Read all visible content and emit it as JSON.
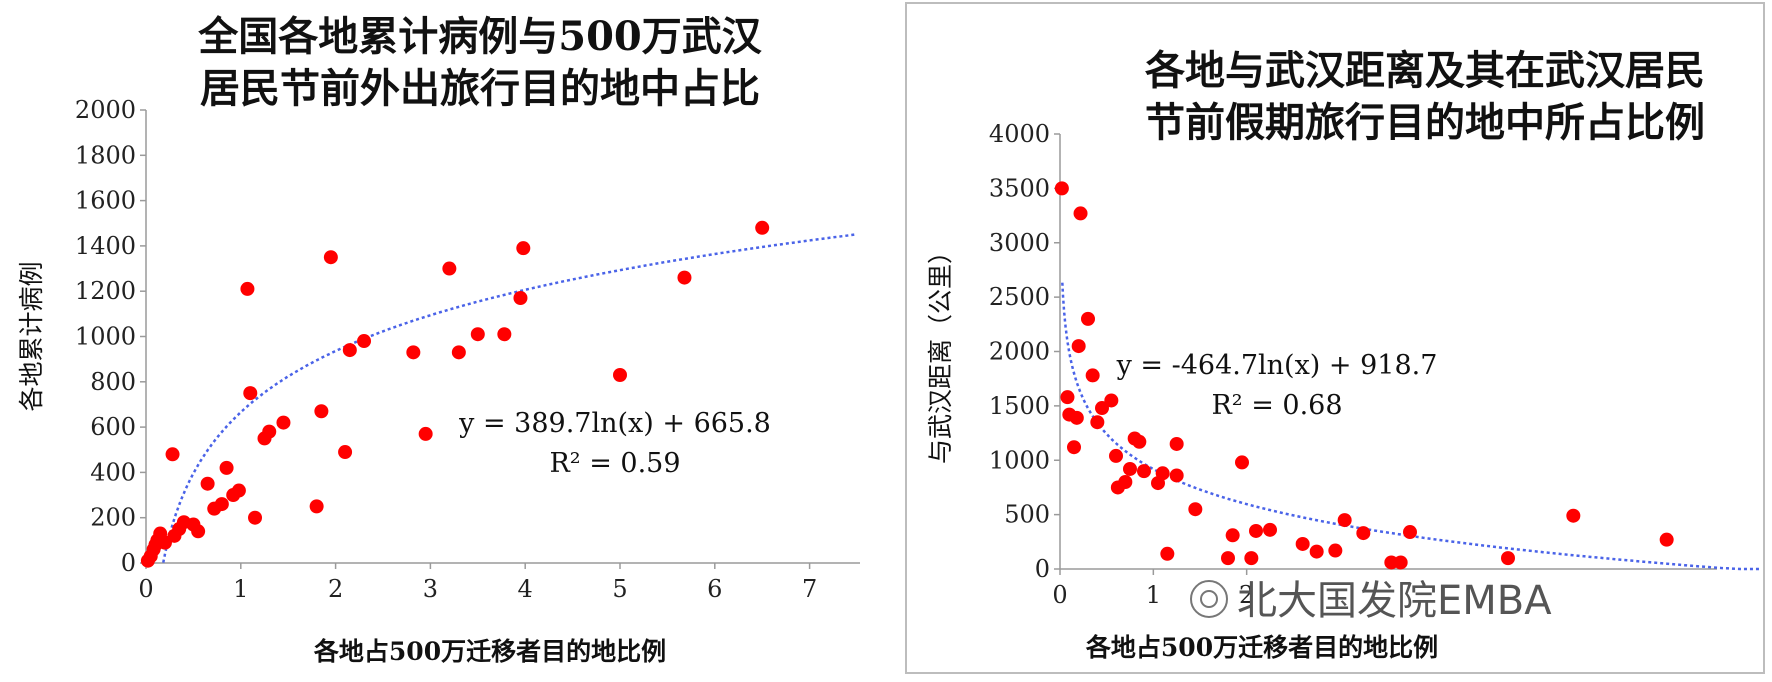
{
  "chart_data": [
    {
      "type": "scatter",
      "title_lines": [
        "全国各地累计病例与500万武汉",
        "居民节前外出旅行目的地中占比"
      ],
      "xlabel": "各地占500万迁移者目的地比例",
      "ylabel": "各地累计病例",
      "xlim": [
        0,
        7.5
      ],
      "ylim": [
        0,
        2000
      ],
      "xticks": [
        "0",
        "1",
        "2",
        "3",
        "4",
        "5",
        "6",
        "7"
      ],
      "yticks": [
        "0",
        "200",
        "400",
        "600",
        "800",
        "1000",
        "1200",
        "1400",
        "1600",
        "1800",
        "2000"
      ],
      "trend": {
        "type": "log",
        "a": 389.7,
        "b": 665.8
      },
      "equation": "y = 389.7ln(x) + 665.8",
      "r2": "R² = 0.59",
      "marker_color": "#ff0000",
      "trend_color": "#4a63e8",
      "points": [
        [
          0.02,
          10
        ],
        [
          0.05,
          30
        ],
        [
          0.08,
          60
        ],
        [
          0.1,
          80
        ],
        [
          0.15,
          130
        ],
        [
          0.12,
          100
        ],
        [
          0.2,
          90
        ],
        [
          0.28,
          480
        ],
        [
          0.3,
          120
        ],
        [
          0.35,
          150
        ],
        [
          0.4,
          180
        ],
        [
          0.5,
          170
        ],
        [
          0.55,
          140
        ],
        [
          0.65,
          350
        ],
        [
          0.72,
          240
        ],
        [
          0.8,
          260
        ],
        [
          0.85,
          420
        ],
        [
          0.92,
          300
        ],
        [
          0.98,
          320
        ],
        [
          1.07,
          1210
        ],
        [
          1.1,
          750
        ],
        [
          1.15,
          200
        ],
        [
          1.25,
          550
        ],
        [
          1.3,
          580
        ],
        [
          1.45,
          620
        ],
        [
          1.8,
          250
        ],
        [
          1.85,
          670
        ],
        [
          1.95,
          1350
        ],
        [
          2.1,
          490
        ],
        [
          2.15,
          940
        ],
        [
          2.3,
          980
        ],
        [
          2.82,
          930
        ],
        [
          2.95,
          570
        ],
        [
          3.2,
          1300
        ],
        [
          3.3,
          930
        ],
        [
          3.5,
          1010
        ],
        [
          3.78,
          1010
        ],
        [
          3.95,
          1170
        ],
        [
          3.98,
          1390
        ],
        [
          5.0,
          830
        ],
        [
          5.68,
          1260
        ],
        [
          6.5,
          1480
        ]
      ]
    },
    {
      "type": "scatter",
      "title_lines": [
        "各地与武汉距离及其在武汉居民",
        "节前假期旅行目的地中所占比例"
      ],
      "xlabel": "各地占500万迁移者目的地比例",
      "ylabel": "与武汉距离（公里）",
      "xlim": [
        0,
        7.5
      ],
      "ylim": [
        0,
        4000
      ],
      "xticks": [
        "0",
        "1",
        "2"
      ],
      "yticks": [
        "0",
        "500",
        "1000",
        "1500",
        "2000",
        "2500",
        "3000",
        "3500",
        "4000"
      ],
      "trend": {
        "type": "log",
        "a": -464.7,
        "b": 918.7
      },
      "equation": "y = -464.7ln(x) + 918.7",
      "r2": "R² = 0.68",
      "marker_color": "#ff0000",
      "trend_color": "#4a63e8",
      "watermark": "北大国发院EMBA",
      "points": [
        [
          0.02,
          3500
        ],
        [
          0.08,
          1580
        ],
        [
          0.1,
          1420
        ],
        [
          0.15,
          1120
        ],
        [
          0.18,
          1390
        ],
        [
          0.2,
          2050
        ],
        [
          0.22,
          3270
        ],
        [
          0.3,
          2300
        ],
        [
          0.35,
          1780
        ],
        [
          0.4,
          1350
        ],
        [
          0.45,
          1480
        ],
        [
          0.55,
          1550
        ],
        [
          0.6,
          1040
        ],
        [
          0.62,
          750
        ],
        [
          0.7,
          800
        ],
        [
          0.75,
          920
        ],
        [
          0.8,
          1200
        ],
        [
          0.85,
          1170
        ],
        [
          0.9,
          900
        ],
        [
          1.05,
          790
        ],
        [
          1.1,
          880
        ],
        [
          1.15,
          140
        ],
        [
          1.25,
          860
        ],
        [
          1.25,
          1150
        ],
        [
          1.45,
          550
        ],
        [
          1.8,
          100
        ],
        [
          1.85,
          310
        ],
        [
          1.95,
          980
        ],
        [
          2.05,
          100
        ],
        [
          2.1,
          350
        ],
        [
          2.25,
          360
        ],
        [
          2.6,
          230
        ],
        [
          2.75,
          160
        ],
        [
          2.95,
          170
        ],
        [
          3.05,
          450
        ],
        [
          3.25,
          330
        ],
        [
          3.55,
          60
        ],
        [
          3.65,
          60
        ],
        [
          3.75,
          340
        ],
        [
          4.8,
          100
        ],
        [
          5.5,
          490
        ],
        [
          6.5,
          270
        ]
      ]
    }
  ]
}
